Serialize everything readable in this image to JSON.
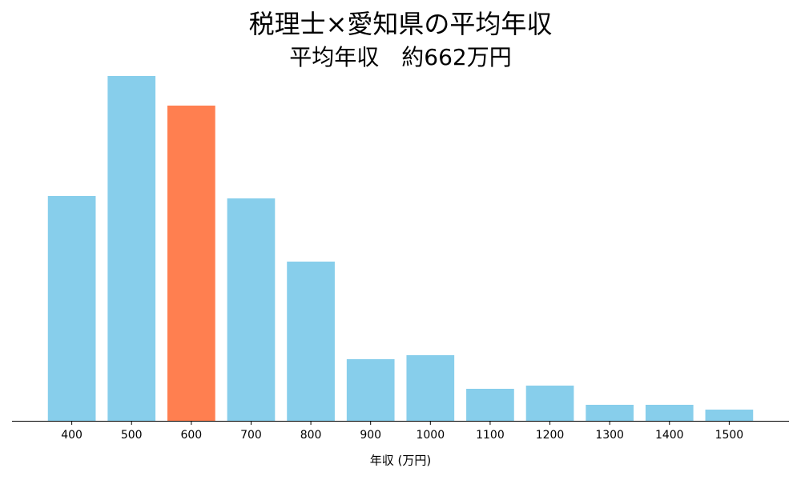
{
  "chart_data": {
    "type": "bar",
    "title": "税理士×愛知県の平均年収",
    "subtitle": "平均年収　約662万円",
    "x_label": "年収 (万円)",
    "categories": [
      "400",
      "500",
      "600",
      "700",
      "800",
      "900",
      "1000",
      "1100",
      "1200",
      "1300",
      "1400",
      "1500"
    ],
    "values": [
      281,
      431,
      394,
      278,
      199,
      77,
      82,
      40,
      44,
      20,
      20,
      14
    ],
    "colors": [
      "#87ceeb",
      "#87ceeb",
      "#ff7f50",
      "#87ceeb",
      "#87ceeb",
      "#87ceeb",
      "#87ceeb",
      "#87ceeb",
      "#87ceeb",
      "#87ceeb",
      "#87ceeb",
      "#87ceeb"
    ],
    "ylim": [
      0,
      452
    ]
  }
}
